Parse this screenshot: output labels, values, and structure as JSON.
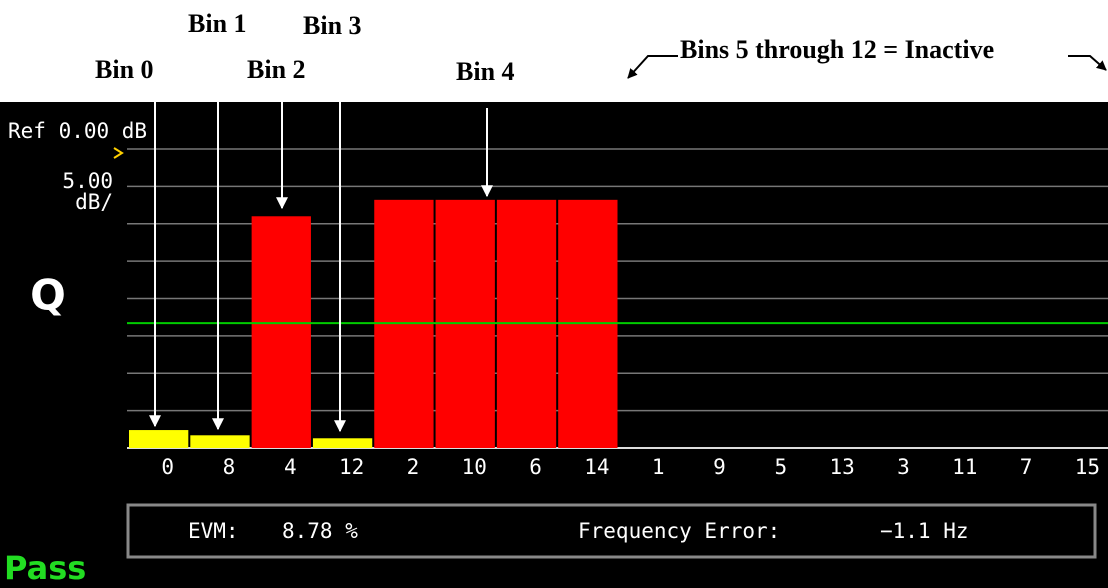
{
  "annotations": [
    "Bin 0",
    "Bin 1",
    "Bin 2",
    "Bin 3",
    "Bin 4",
    "Bins 5 through 12 = Inactive"
  ],
  "screen": {
    "reference": "Ref 0.00 dB",
    "scale_value": "5.00",
    "scale_unit": "dB/",
    "channel": "Q",
    "evm_label": "EVM:",
    "evm_value": "8.78 %",
    "freq_label": "Frequency Error:",
    "freq_value": "−1.1 Hz",
    "status": "Pass"
  },
  "chart_data": {
    "type": "bar",
    "categories": [
      "0",
      "8",
      "4",
      "12",
      "2",
      "10",
      "6",
      "14",
      "1",
      "9",
      "5",
      "13",
      "3",
      "11",
      "7",
      "15"
    ],
    "values": [
      -37.6,
      -38.3,
      -9.0,
      -38.7,
      -6.8,
      -6.8,
      -6.8,
      -6.8,
      null,
      null,
      null,
      null,
      null,
      null,
      null,
      null
    ],
    "colors": [
      "#ffff00",
      "#ffff00",
      "#ff0000",
      "#ffff00",
      "#ff0000",
      "#ff0000",
      "#ff0000",
      "#ff0000",
      null,
      null,
      null,
      null,
      null,
      null,
      null,
      null
    ],
    "limit": -23.3,
    "limit_color": "#00cc00",
    "ylim": [
      -40,
      0
    ],
    "yticks": [
      -40,
      -35,
      -30,
      -25,
      -20,
      -15,
      -10,
      -5,
      0
    ],
    "grid": true
  }
}
